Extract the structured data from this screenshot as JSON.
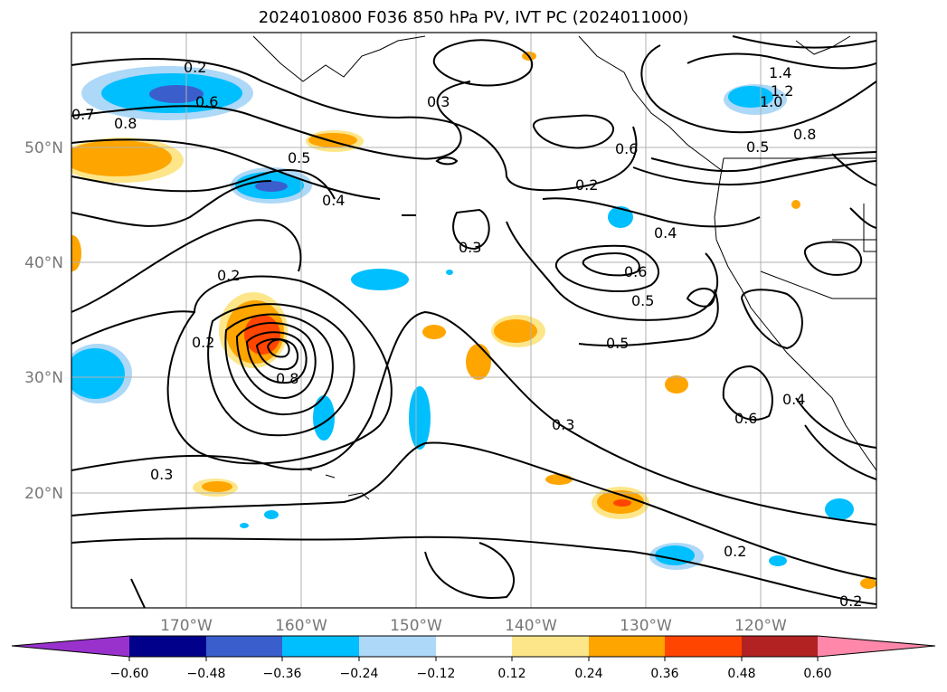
{
  "title": "2024010800 F036 850 hPa PV, IVT PC (2024011000)",
  "axes": {
    "lat_ticks": [
      "50°N",
      "40°N",
      "30°N",
      "20°N"
    ],
    "lon_ticks": [
      "170°W",
      "160°W",
      "150°W",
      "140°W",
      "130°W",
      "120°W"
    ]
  },
  "contour_labels": [
    "0.2",
    "0.6",
    "0.7",
    "0.8",
    "0.3",
    "0.4",
    "0.5",
    "1.4",
    "1.0",
    "1.2",
    "0.8",
    "0.6",
    "0.5",
    "0.4",
    "0.2",
    "0.3",
    "0.5",
    "0.2",
    "0.6",
    "0.2",
    "0.8",
    "0.3",
    "0.5",
    "0.4",
    "0.3",
    "0.6",
    "0.2",
    "0.2"
  ],
  "colorbar": {
    "ticks": [
      "−0.60",
      "−0.48",
      "−0.36",
      "−0.24",
      "−0.12",
      "0.12",
      "0.24",
      "0.36",
      "0.48",
      "0.60"
    ],
    "colors": [
      "#9932cc",
      "#00008b",
      "#3a5fcd",
      "#00bfff",
      "#add8f7",
      "#ffffff",
      "#fde68a",
      "#ffa500",
      "#ff4500",
      "#b22222",
      "#ff88aa"
    ]
  },
  "chart_data": {
    "type": "heatmap",
    "title": "2024010800 F036 850 hPa PV, IVT PC (2024011000)",
    "x_range": [
      "180°W",
      "110°W"
    ],
    "y_range": [
      "10°N",
      "60°N"
    ],
    "levels": [
      -0.6,
      -0.48,
      -0.36,
      -0.24,
      -0.12,
      0.12,
      0.24,
      0.36,
      0.48,
      0.6
    ],
    "contour_values": [
      0.2,
      0.3,
      0.4,
      0.5,
      0.6,
      0.7,
      0.8,
      1.0,
      1.2,
      1.4
    ],
    "grid": true
  }
}
